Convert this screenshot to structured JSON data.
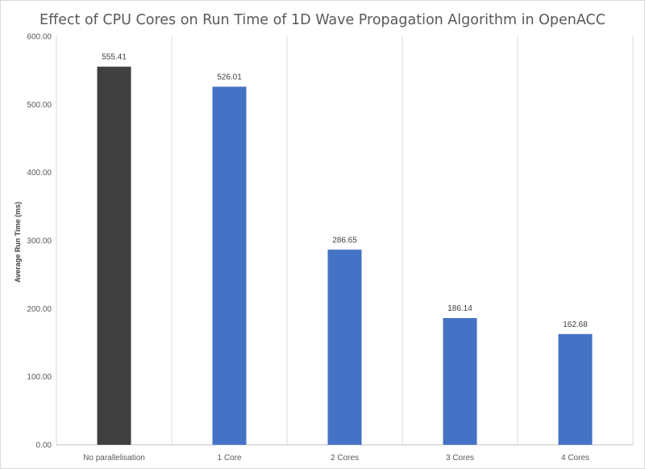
{
  "chart_data": {
    "type": "bar",
    "title": "Effect of CPU Cores on Run Time of 1D Wave Propagation Algorithm in OpenACC",
    "xlabel": "",
    "ylabel": "Average Run Time (ms)",
    "categories": [
      "No parallelisation",
      "1 Core",
      "2 Cores",
      "3 Cores",
      "4 Cores"
    ],
    "values": [
      555.41,
      526.01,
      286.65,
      186.14,
      162.68
    ],
    "value_labels": [
      "555.41",
      "526.01",
      "286.65",
      "186.14",
      "162.68"
    ],
    "ylim": [
      0,
      600
    ],
    "yticks": [
      "0.00",
      "100.00",
      "200.00",
      "300.00",
      "400.00",
      "500.00",
      "600.00"
    ],
    "grid": "vertical category dividers",
    "legend": "none",
    "colors": [
      "#404040",
      "#4472c4",
      "#4472c4",
      "#4472c4",
      "#4472c4"
    ]
  }
}
